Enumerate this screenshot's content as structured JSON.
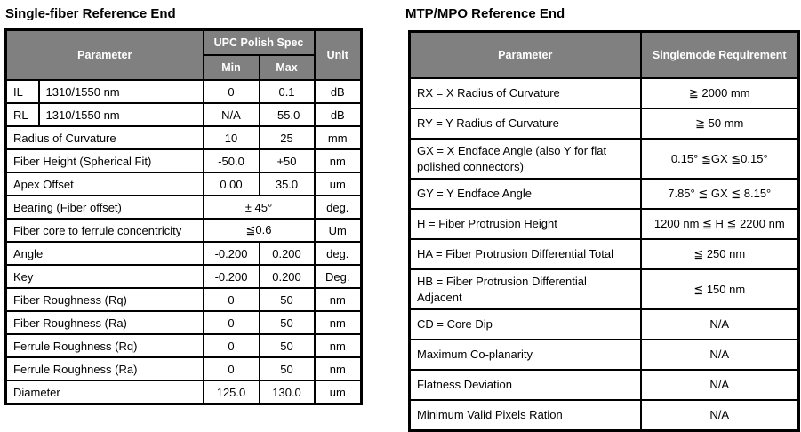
{
  "colors": {
    "header_bg": "#808080",
    "header_text": "#ffffff",
    "border": "#000000",
    "body_text": "#000000",
    "page_bg": "#ffffff"
  },
  "left_table": {
    "title": "Single-fiber Reference End",
    "header": {
      "parameter": "Parameter",
      "spec_group": "UPC Polish Spec",
      "min": "Min",
      "max": "Max",
      "unit": "Unit"
    },
    "rows": [
      {
        "code": "IL",
        "param": "1310/1550 nm",
        "min": "0",
        "max": "0.1",
        "unit": "dB"
      },
      {
        "code": "RL",
        "param": "1310/1550 nm",
        "min": "N/A",
        "max": "-55.0",
        "unit": "dB"
      },
      {
        "param": "Radius of Curvature",
        "min": "10",
        "max": "25",
        "unit": "mm"
      },
      {
        "param": "Fiber Height (Spherical Fit)",
        "min": "-50.0",
        "max": "+50",
        "unit": "nm"
      },
      {
        "param": "Apex Offset",
        "min": "0.00",
        "max": "35.0",
        "unit": "um"
      },
      {
        "param": "Bearing (Fiber offset)",
        "merged": "± 45°",
        "unit": "deg."
      },
      {
        "param": "Fiber core to ferrule concentricity",
        "merged": "≦0.6",
        "unit": "Um"
      },
      {
        "param": "Angle",
        "min": "-0.200",
        "max": "0.200",
        "unit": "deg."
      },
      {
        "param": "Key",
        "min": "-0.200",
        "max": "0.200",
        "unit": "Deg."
      },
      {
        "param": "Fiber Roughness (Rq)",
        "min": "0",
        "max": "50",
        "unit": "nm"
      },
      {
        "param": "Fiber Roughness (Ra)",
        "min": "0",
        "max": "50",
        "unit": "nm"
      },
      {
        "param": "Ferrule Roughness (Rq)",
        "min": "0",
        "max": "50",
        "unit": "nm"
      },
      {
        "param": "Ferrule Roughness (Ra)",
        "min": "0",
        "max": "50",
        "unit": "nm"
      },
      {
        "param": "Diameter",
        "min": "125.0",
        "max": "130.0",
        "unit": "um"
      }
    ]
  },
  "right_table": {
    "title": "MTP/MPO Reference End",
    "header": {
      "parameter": "Parameter",
      "requirement": "Singlemode Requirement"
    },
    "rows": [
      {
        "param": "RX = X Radius of Curvature",
        "req": "≧ 2000 mm"
      },
      {
        "param": "RY = Y Radius of Curvature",
        "req": "≧ 50 mm"
      },
      {
        "param": "GX = X Endface Angle (also Y for flat polished connectors)",
        "req": "0.15° ≦GX ≦0.15°"
      },
      {
        "param": "GY = Y Endface Angle",
        "req": "7.85° ≦ GX ≦ 8.15°"
      },
      {
        "param": "H = Fiber Protrusion Height",
        "req": "1200 nm ≦ H ≦ 2200 nm"
      },
      {
        "param": "HA = Fiber Protrusion Differential Total",
        "req": "≦ 250 nm"
      },
      {
        "param": "HB = Fiber Protrusion Differential Adjacent",
        "req": "≦ 150 nm"
      },
      {
        "param": "CD = Core Dip",
        "req": "N/A"
      },
      {
        "param": "Maximum Co-planarity",
        "req": "N/A"
      },
      {
        "param": "Flatness Deviation",
        "req": "N/A"
      },
      {
        "param": "Minimum Valid Pixels Ration",
        "req": "N/A"
      }
    ]
  }
}
